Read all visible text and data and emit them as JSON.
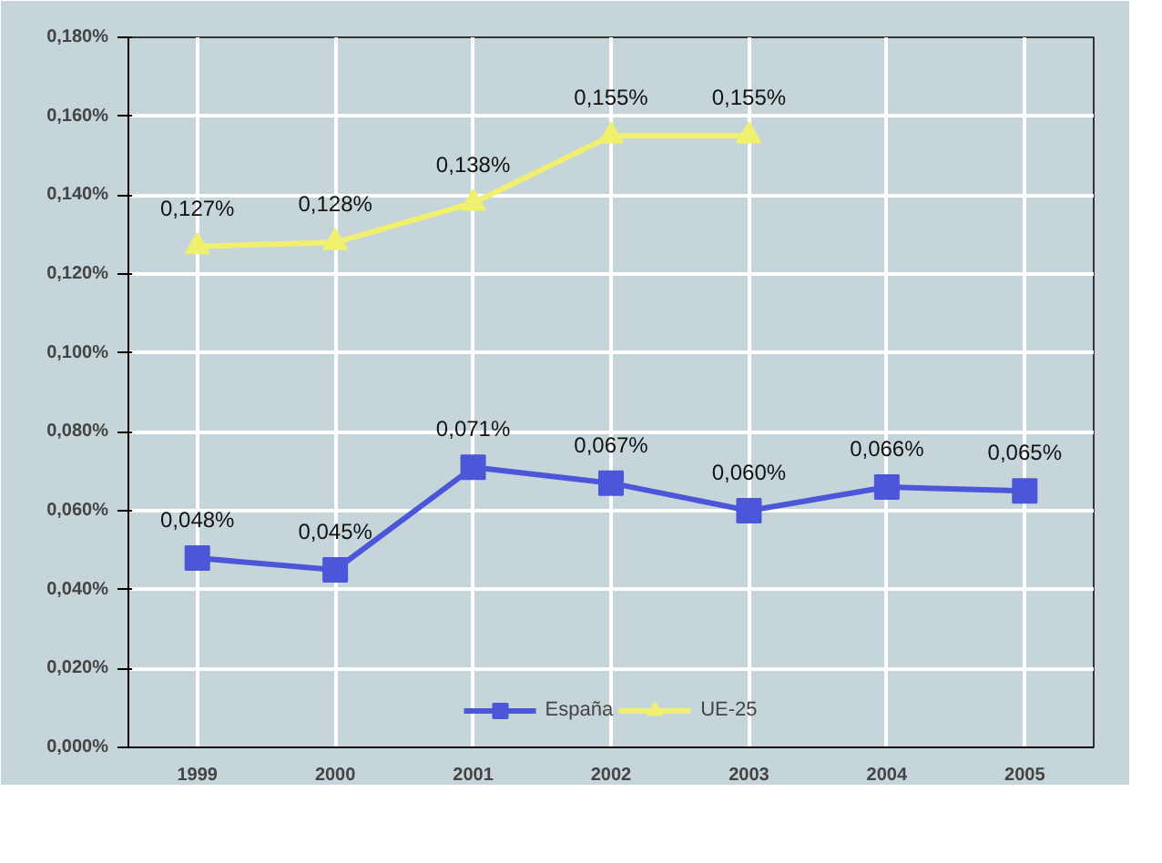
{
  "chart_data": {
    "type": "line",
    "categories": [
      "1999",
      "2000",
      "2001",
      "2002",
      "2003",
      "2004",
      "2005"
    ],
    "series": [
      {
        "name": "España",
        "color": "#4b56d8",
        "marker": "square",
        "values": [
          0.048,
          0.045,
          0.071,
          0.067,
          0.06,
          0.066,
          0.065
        ],
        "value_labels": [
          "0,048%",
          "0,045%",
          "0,071%",
          "0,067%",
          "0,060%",
          "0,066%",
          "0,065%"
        ]
      },
      {
        "name": "UE-25",
        "color": "#f0f06e",
        "marker": "triangle",
        "values": [
          0.127,
          0.128,
          0.138,
          0.155,
          0.155,
          null,
          null
        ],
        "value_labels": [
          "0,127%",
          "0,128%",
          "0,138%",
          "0,155%",
          "0,155%",
          null,
          null
        ]
      }
    ],
    "ylim": [
      0,
      0.18
    ],
    "yticks": [
      {
        "value": 0,
        "label": "0,000%"
      },
      {
        "value": 0.02,
        "label": "0,020%"
      },
      {
        "value": 0.04,
        "label": "0,040%"
      },
      {
        "value": 0.06,
        "label": "0,060%"
      },
      {
        "value": 0.08,
        "label": "0,080%"
      },
      {
        "value": 0.1,
        "label": "0,100%"
      },
      {
        "value": 0.12,
        "label": "0,120%"
      },
      {
        "value": 0.14,
        "label": "0,140%"
      },
      {
        "value": 0.16,
        "label": "0,160%"
      },
      {
        "value": 0.18,
        "label": "0,180%"
      }
    ],
    "grid": true,
    "legend": "bottom"
  }
}
